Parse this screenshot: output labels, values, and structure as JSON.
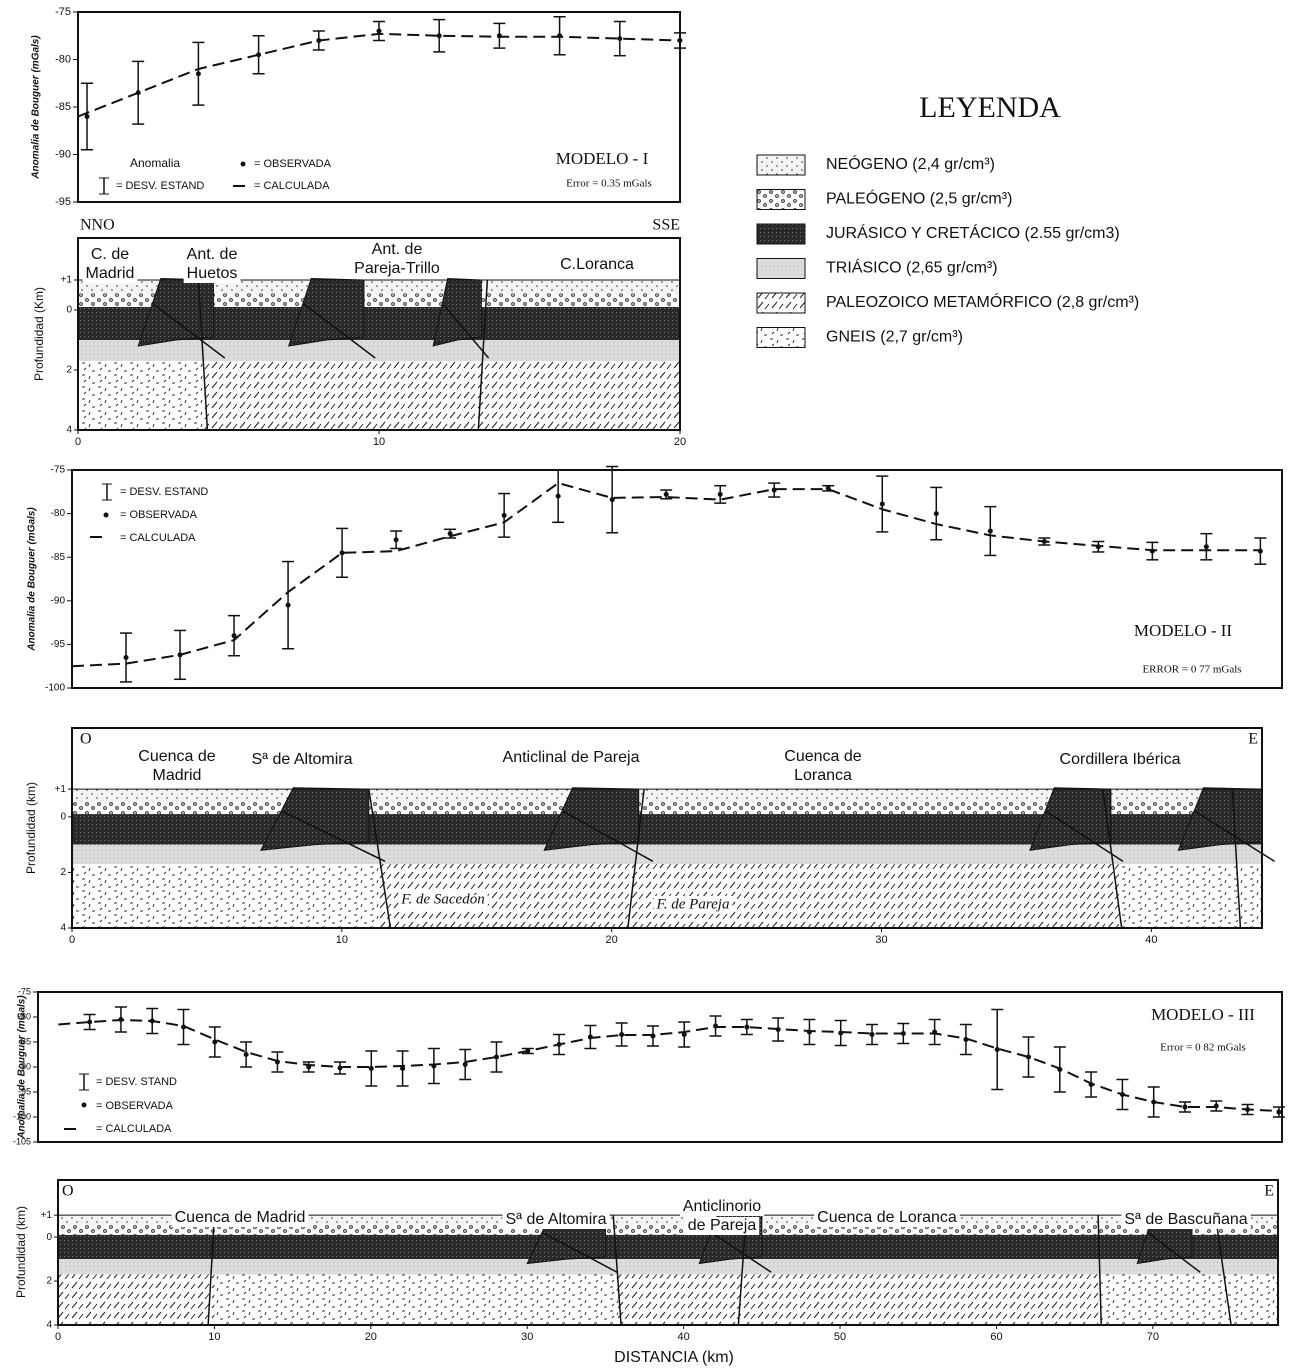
{
  "chart_data": [
    {
      "type": "errorbar",
      "y_label": "Anomalia de Bouguer (mGals)",
      "legend_title": "Anomalia",
      "error_label": "= DESV. ESTAND",
      "model": "MODELO - I",
      "error_text": "Error = 0.35 mGals",
      "xlim": [
        0,
        20
      ],
      "ylim": [
        -95,
        -75
      ],
      "yticks": [
        -75,
        -80,
        -85,
        -90,
        -95
      ],
      "series": [
        {
          "name": "= OBSERVADA",
          "x": [
            0.3,
            2,
            4,
            6,
            8,
            10,
            12,
            14,
            16,
            18,
            20
          ],
          "values": [
            -86,
            -83.5,
            -81.5,
            -79.5,
            -78,
            -77,
            -77.5,
            -77.5,
            -77.5,
            -77.8,
            -78
          ],
          "errors": [
            3.5,
            3.3,
            3.3,
            2,
            1,
            1,
            1.7,
            1.3,
            2,
            1.8,
            0.8
          ]
        },
        {
          "name": "= CALCULADA",
          "x": [
            0,
            2,
            4,
            6,
            8,
            10,
            12,
            14,
            16,
            18,
            20
          ],
          "values": [
            -86,
            -83.5,
            -81,
            -79.5,
            -78,
            -77.3,
            -77.5,
            -77.6,
            -77.6,
            -77.8,
            -78
          ]
        }
      ]
    },
    {
      "type": "cross-section",
      "y_label": "Profundidad (Km)",
      "corner_labels": [
        "NNO",
        "SSE"
      ],
      "labels": [
        [
          "C. de",
          "Madrid"
        ],
        [
          "Ant. de",
          "Huetos"
        ],
        [
          "Ant. de",
          "Pareja-Trillo"
        ],
        [
          "C.Loranca"
        ]
      ],
      "fault_labels": [],
      "xlim": [
        0,
        20
      ],
      "ylim": [
        -2.4,
        4
      ],
      "xticks": [
        0,
        10,
        20
      ],
      "yticks": [
        {
          "value": -1,
          "label": "+1"
        },
        0,
        2,
        4
      ]
    },
    {
      "type": "errorbar",
      "y_label": "Anomalia de Bouguer (mGals)",
      "error_label": "= DESV. ESTAND",
      "model": "MODELO - II",
      "error_text": "ERROR = 0 77 mGals",
      "xlim": [
        0,
        44.8
      ],
      "ylim": [
        -100,
        -75
      ],
      "yticks": [
        -75,
        -80,
        -85,
        -90,
        -95,
        -100
      ],
      "series": [
        {
          "name": "= OBSERVADA",
          "x": [
            2,
            4,
            6,
            8,
            10,
            12,
            14,
            16,
            18,
            20,
            22,
            24,
            26,
            28,
            30,
            32,
            34,
            36,
            38,
            40,
            42,
            44
          ],
          "values": [
            -96.5,
            -96.2,
            -94,
            -90.5,
            -84.5,
            -83,
            -82.3,
            -80.2,
            -78,
            -78.4,
            -77.8,
            -77.8,
            -77.3,
            -77.1,
            -78.9,
            -80,
            -82,
            -83.2,
            -83.8,
            -84.3,
            -83.8,
            -84.3
          ],
          "errors": [
            2.8,
            2.8,
            2.3,
            5,
            2.8,
            1,
            0.5,
            2.5,
            3,
            3.8,
            0.5,
            1,
            0.8,
            0.3,
            3.2,
            3,
            2.8,
            0.4,
            0.6,
            1,
            1.5,
            1.5
          ]
        },
        {
          "name": "= CALCULADA",
          "x": [
            0,
            2,
            4,
            6,
            8,
            10,
            12,
            14,
            16,
            18,
            20,
            22,
            24,
            26,
            28,
            30,
            32,
            34,
            36,
            38,
            40,
            42,
            44
          ],
          "values": [
            -97.5,
            -97.2,
            -96.2,
            -94.5,
            -89,
            -84.5,
            -84.3,
            -82.6,
            -81,
            -76.5,
            -78.2,
            -78.1,
            -78.4,
            -77.2,
            -77.2,
            -79.5,
            -81.2,
            -82.5,
            -83.2,
            -83.7,
            -84.2,
            -84.2,
            -84.2
          ]
        }
      ]
    },
    {
      "type": "cross-section",
      "y_label": "Profundidad (km)",
      "corner_labels": [
        "O",
        "E"
      ],
      "labels": [
        [
          "Cuenca de",
          "Madrid"
        ],
        [
          "Sª de Altomira"
        ],
        [
          "Anticlinal de Pareja"
        ],
        [
          "Cuenca de",
          "Loranca"
        ],
        [
          "Cordillera Ibérica"
        ]
      ],
      "fault_labels": [
        "F. de Sacedón",
        "F. de Pareja"
      ],
      "xlim": [
        0,
        44.1
      ],
      "ylim": [
        -3.2,
        4
      ],
      "xticks": [
        0,
        10,
        20,
        30,
        40
      ],
      "yticks": [
        {
          "value": -1,
          "label": "+1"
        },
        0,
        2,
        4
      ]
    },
    {
      "type": "errorbar",
      "y_label": "Anomalia de Bouguer (mGals)",
      "error_label": "= DESV. STAND",
      "model": "MODELO - III",
      "error_text": "Error = 0 82 mGals",
      "xlim": [
        -1.3,
        78.2
      ],
      "ylim": [
        -105,
        -75
      ],
      "yticks": [
        -75,
        -80,
        -85,
        -90,
        -95,
        -100,
        -105
      ],
      "series": [
        {
          "name": "= OBSERVADA",
          "x": [
            2,
            4,
            6,
            8,
            10,
            12,
            14,
            16,
            18,
            20,
            22,
            24,
            26,
            28,
            30,
            32,
            34,
            36,
            38,
            40,
            42,
            44,
            46,
            48,
            50,
            52,
            54,
            56,
            58,
            60,
            62,
            64,
            66,
            68,
            70,
            72,
            74,
            76,
            78
          ],
          "values": [
            -81,
            -80.5,
            -80.8,
            -82,
            -85,
            -87.5,
            -89,
            -90,
            -90.2,
            -90.3,
            -90.3,
            -89.8,
            -89.5,
            -88,
            -86.8,
            -85.5,
            -84,
            -83.5,
            -83.8,
            -83.5,
            -81.8,
            -82,
            -82.5,
            -83,
            -83.2,
            -83.5,
            -83.3,
            -83,
            -84.5,
            -86.5,
            -88,
            -90.5,
            -93.5,
            -95.5,
            -97,
            -98,
            -97.8,
            -98.5,
            -99
          ],
          "errors": [
            1.5,
            2.5,
            2.5,
            3.5,
            3,
            2.5,
            2,
            1,
            1.2,
            3.5,
            3.5,
            3.5,
            3,
            3,
            0.5,
            2,
            2.3,
            2.3,
            2,
            2.5,
            2,
            1.5,
            2.3,
            2.5,
            2.5,
            2,
            2,
            2.5,
            3,
            8,
            4,
            4.5,
            2.5,
            3,
            3,
            1,
            1,
            1,
            1
          ]
        },
        {
          "name": "= CALCULADA",
          "x": [
            0,
            2,
            4,
            6,
            8,
            10,
            12,
            14,
            16,
            18,
            20,
            22,
            24,
            26,
            28,
            30,
            32,
            34,
            36,
            38,
            40,
            42,
            44,
            46,
            48,
            50,
            52,
            54,
            56,
            58,
            60,
            62,
            64,
            66,
            68,
            70,
            72,
            74,
            76,
            78
          ],
          "values": [
            -81.5,
            -81,
            -80.6,
            -80.8,
            -81.8,
            -84.5,
            -87,
            -88.8,
            -89.6,
            -90,
            -90,
            -89.8,
            -89.5,
            -89,
            -88,
            -86.8,
            -85.5,
            -84.2,
            -83.6,
            -83.6,
            -83,
            -82,
            -82,
            -82.4,
            -82.8,
            -83,
            -83.3,
            -83.3,
            -83.3,
            -84.3,
            -86.3,
            -88,
            -90.3,
            -93.3,
            -95.5,
            -97,
            -98,
            -98,
            -98.5,
            -98.8
          ]
        }
      ]
    },
    {
      "type": "cross-section",
      "y_label": "Profundidad (km)",
      "x_label": "DISTANCIA (km)",
      "corner_labels": [
        "O",
        "E"
      ],
      "labels": [
        [
          "Cuenca de Madrid"
        ],
        [
          "Sª de Altomira"
        ],
        [
          "Anticlinorio",
          "de Pareja"
        ],
        [
          "Cuenca de Loranca"
        ],
        [
          "Sª de Bascuñana"
        ]
      ],
      "fault_labels": [],
      "xlim": [
        0,
        78
      ],
      "ylim": [
        -2.6,
        4
      ],
      "xticks": [
        0,
        10,
        20,
        30,
        40,
        50,
        60,
        70
      ],
      "yticks": [
        {
          "value": -1,
          "label": "+1"
        },
        0,
        2,
        4
      ]
    }
  ],
  "legend": {
    "title": "LEYENDA",
    "items": [
      "NEÓGENO (2,4 gr/cm³)",
      "PALEÓGENO (2,5 gr/cm³)",
      "JURÁSICO Y CRETÁCICO (2.55 gr/cm3)",
      "TRIÁSICO (2,65 gr/cm³)",
      "PALEOZOICO METAMÓRFICO (2,8 gr/cm³)",
      "GNEIS (2,7 gr/cm³)"
    ]
  }
}
